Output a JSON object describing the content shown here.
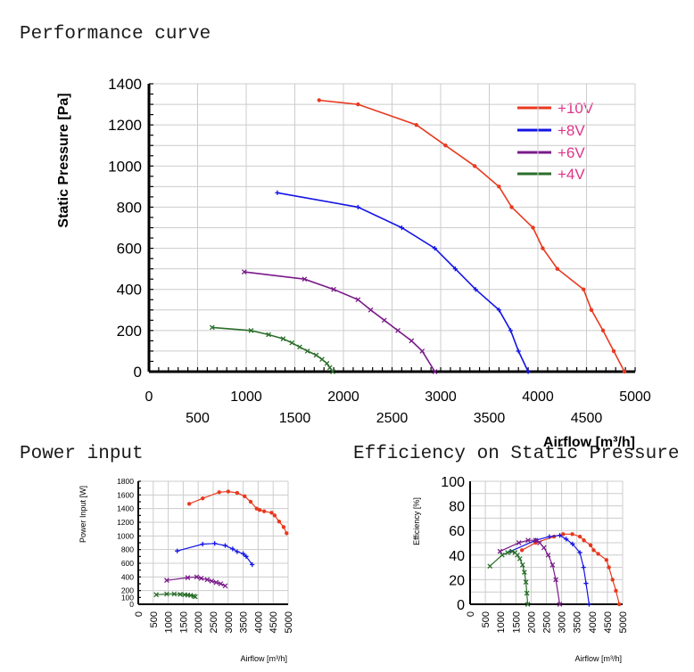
{
  "headings": {
    "performance": "Performance curve",
    "power": "Power input",
    "efficiency": "Efficiency on Static Pressure"
  },
  "colors": {
    "v10": "#e8391f",
    "v8": "#1414e6",
    "v6": "#7a1a8a",
    "v4": "#2a6e2a",
    "legend_text": "#e0338a",
    "grid": "#cccccc"
  },
  "chart_data": [
    {
      "id": "performance",
      "type": "line",
      "title": "Performance curve",
      "xlabel": "Airflow [m³/h]",
      "ylabel": "Static Pressure [Pa]",
      "xlim": [
        0,
        5000
      ],
      "ylim": [
        0,
        1400
      ],
      "x_ticks_row1": [
        "0",
        "1000",
        "2000",
        "3000",
        "4000",
        "5000"
      ],
      "x_ticks_row2": [
        "500",
        "1500",
        "2500",
        "3500",
        "4500"
      ],
      "y_ticks": [
        "0",
        "200",
        "400",
        "600",
        "800",
        "1000",
        "1200",
        "1400"
      ],
      "legend": [
        "+10V",
        "+8V",
        "+6V",
        "+4V"
      ],
      "series": [
        {
          "name": "+10V",
          "x": [
            1750,
            2150,
            2750,
            3050,
            3350,
            3600,
            3730,
            3950,
            4050,
            4200,
            4470,
            4550,
            4670,
            4780,
            4890
          ],
          "y": [
            1320,
            1300,
            1200,
            1100,
            1000,
            900,
            800,
            700,
            600,
            500,
            400,
            300,
            200,
            100,
            0
          ]
        },
        {
          "name": "+8V",
          "x": [
            1320,
            2150,
            2600,
            2940,
            3150,
            3360,
            3600,
            3720,
            3800,
            3900
          ],
          "y": [
            870,
            800,
            700,
            600,
            500,
            400,
            300,
            200,
            100,
            0
          ]
        },
        {
          "name": "+6V",
          "x": [
            980,
            1600,
            1900,
            2150,
            2280,
            2420,
            2560,
            2700,
            2810,
            2940
          ],
          "y": [
            485,
            450,
            400,
            350,
            300,
            250,
            200,
            150,
            100,
            0
          ]
        },
        {
          "name": "+4V",
          "x": [
            650,
            1050,
            1230,
            1380,
            1470,
            1550,
            1630,
            1720,
            1780,
            1830,
            1860,
            1890
          ],
          "y": [
            215,
            200,
            180,
            160,
            140,
            120,
            100,
            80,
            60,
            40,
            20,
            0
          ]
        }
      ]
    },
    {
      "id": "power",
      "type": "line",
      "title": "Power input",
      "xlabel": "Airflow [m³/h]",
      "ylabel": "Power Input [W]",
      "xlim": [
        0,
        5000
      ],
      "ylim": [
        0,
        1800
      ],
      "x_ticks": [
        "0",
        "500",
        "1000",
        "1500",
        "2000",
        "2500",
        "3000",
        "3500",
        "4000",
        "4500",
        "5000"
      ],
      "y_ticks": [
        "0",
        "100",
        "200",
        "400",
        "600",
        "800",
        "1000",
        "1200",
        "1400",
        "1600",
        "1800"
      ],
      "series": [
        {
          "name": "+10V",
          "x": [
            1700,
            2150,
            2700,
            3000,
            3300,
            3550,
            3750,
            3950,
            4050,
            4200,
            4450,
            4550,
            4700,
            4850,
            4950
          ],
          "y": [
            1470,
            1550,
            1640,
            1650,
            1630,
            1580,
            1500,
            1400,
            1380,
            1360,
            1340,
            1300,
            1210,
            1130,
            1040
          ]
        },
        {
          "name": "+8V",
          "x": [
            1300,
            2150,
            2550,
            2900,
            3150,
            3300,
            3500,
            3600,
            3800
          ],
          "y": [
            780,
            880,
            890,
            860,
            810,
            770,
            740,
            700,
            580
          ]
        },
        {
          "name": "+6V",
          "x": [
            950,
            1650,
            1950,
            2100,
            2300,
            2450,
            2600,
            2750,
            2900
          ],
          "y": [
            350,
            390,
            400,
            380,
            360,
            340,
            320,
            300,
            270
          ]
        },
        {
          "name": "+4V",
          "x": [
            600,
            950,
            1200,
            1400,
            1550,
            1650,
            1750,
            1850,
            1900
          ],
          "y": [
            140,
            150,
            150,
            145,
            140,
            135,
            130,
            120,
            110
          ]
        }
      ]
    },
    {
      "id": "efficiency",
      "type": "line",
      "title": "Efficiency on Static Pressure",
      "xlabel": "Airflow [m³/h]",
      "ylabel": "Efficiency [%]",
      "xlim": [
        0,
        5000
      ],
      "ylim": [
        0,
        100
      ],
      "x_ticks": [
        "0",
        "500",
        "1000",
        "1500",
        "2000",
        "2500",
        "3000",
        "3500",
        "4000",
        "4500",
        "5000"
      ],
      "y_ticks": [
        "0",
        "20",
        "40",
        "60",
        "80",
        "100"
      ],
      "series": [
        {
          "name": "+10V",
          "x": [
            1700,
            2150,
            2750,
            3050,
            3350,
            3600,
            3730,
            3950,
            4050,
            4200,
            4470,
            4550,
            4670,
            4780,
            4890
          ],
          "y": [
            44,
            50,
            55,
            57,
            57,
            55,
            52,
            48,
            44,
            41,
            36,
            30,
            20,
            11,
            0
          ]
        },
        {
          "name": "+8V",
          "x": [
            1320,
            2150,
            2600,
            2940,
            3150,
            3360,
            3600,
            3720,
            3800,
            3900
          ],
          "y": [
            43,
            52,
            55,
            56,
            53,
            49,
            42,
            30,
            17,
            0
          ]
        },
        {
          "name": "+6V",
          "x": [
            980,
            1600,
            1900,
            2150,
            2280,
            2420,
            2560,
            2700,
            2810,
            2940
          ],
          "y": [
            43,
            50,
            52,
            52,
            50,
            46,
            40,
            32,
            20,
            0
          ]
        },
        {
          "name": "+4V",
          "x": [
            650,
            1050,
            1230,
            1380,
            1470,
            1550,
            1630,
            1720,
            1780,
            1830,
            1860,
            1890
          ],
          "y": [
            31,
            40,
            42,
            43,
            42,
            40,
            37,
            32,
            26,
            18,
            9,
            0
          ]
        }
      ]
    }
  ]
}
